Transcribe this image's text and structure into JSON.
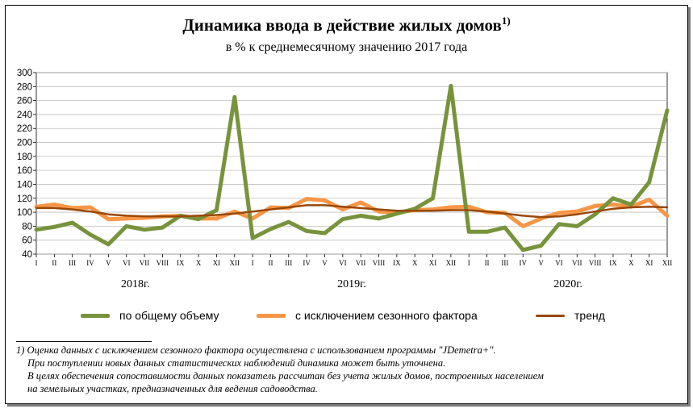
{
  "title": "Динамика ввода в действие жилых домов",
  "title_sup": "1)",
  "subtitle": "в % к среднемесячному значению 2017 года",
  "colors": {
    "total": "#77933C",
    "seasonal": "#F79646",
    "trend": "#984807",
    "grid": "#BFBFBF"
  },
  "legend": {
    "total": "по общему объему",
    "seasonal": "с исключением сезонного фактора",
    "trend": "тренд"
  },
  "chart_data": {
    "type": "line",
    "x": [
      "I",
      "II",
      "III",
      "IV",
      "V",
      "VI",
      "VII",
      "VIII",
      "IX",
      "X",
      "XI",
      "XII",
      "I",
      "II",
      "III",
      "IV",
      "V",
      "VI",
      "VII",
      "VIII",
      "IX",
      "X",
      "XI",
      "XII",
      "I",
      "II",
      "III",
      "IV",
      "V",
      "VI",
      "VII",
      "VIII",
      "IX",
      "X",
      "XI",
      "XII"
    ],
    "year_labels": [
      "2018г.",
      "2019г.",
      "2020г."
    ],
    "ylim": [
      40,
      300
    ],
    "yticks": [
      40,
      60,
      80,
      100,
      120,
      140,
      160,
      180,
      200,
      220,
      240,
      260,
      280,
      300
    ],
    "grid": true,
    "legend_position": "bottom",
    "series": [
      {
        "name": "по общему объему",
        "key": "total",
        "values": [
          75,
          79,
          85,
          68,
          54,
          80,
          75,
          78,
          95,
          90,
          103,
          265,
          63,
          76,
          86,
          73,
          70,
          90,
          95,
          91,
          98,
          105,
          120,
          281,
          72,
          72,
          78,
          46,
          52,
          83,
          80,
          97,
          120,
          111,
          143,
          246
        ]
      },
      {
        "name": "с исключением сезонного фактора",
        "key": "seasonal",
        "values": [
          108,
          111,
          106,
          107,
          90,
          91,
          92,
          94,
          95,
          91,
          91,
          101,
          91,
          107,
          106,
          119,
          117,
          104,
          114,
          101,
          100,
          103,
          104,
          107,
          108,
          100,
          99,
          80,
          91,
          99,
          101,
          109,
          111,
          108,
          118,
          95
        ]
      },
      {
        "name": "тренд",
        "key": "trend",
        "values": [
          106,
          106,
          104,
          101,
          97,
          95,
          94,
          94,
          94,
          95,
          96,
          98,
          101,
          104,
          107,
          110,
          110,
          108,
          106,
          104,
          102,
          102,
          102,
          103,
          103,
          101,
          98,
          95,
          93,
          94,
          97,
          101,
          105,
          107,
          108,
          107
        ]
      }
    ]
  },
  "footnote": {
    "line1": "1) Оценка данных с исключением сезонного фактора осуществлена с использованием программы \"JDemetra+\".",
    "line2": "При поступлении новых данных статистических наблюдений динамика может быть уточнена.",
    "line3": "В целях обеспечения сопоставимости данных показатель рассчитан без учета жилых домов, построенных населением",
    "line4": "на земельных участках, предназначенных для ведения садоводства."
  }
}
